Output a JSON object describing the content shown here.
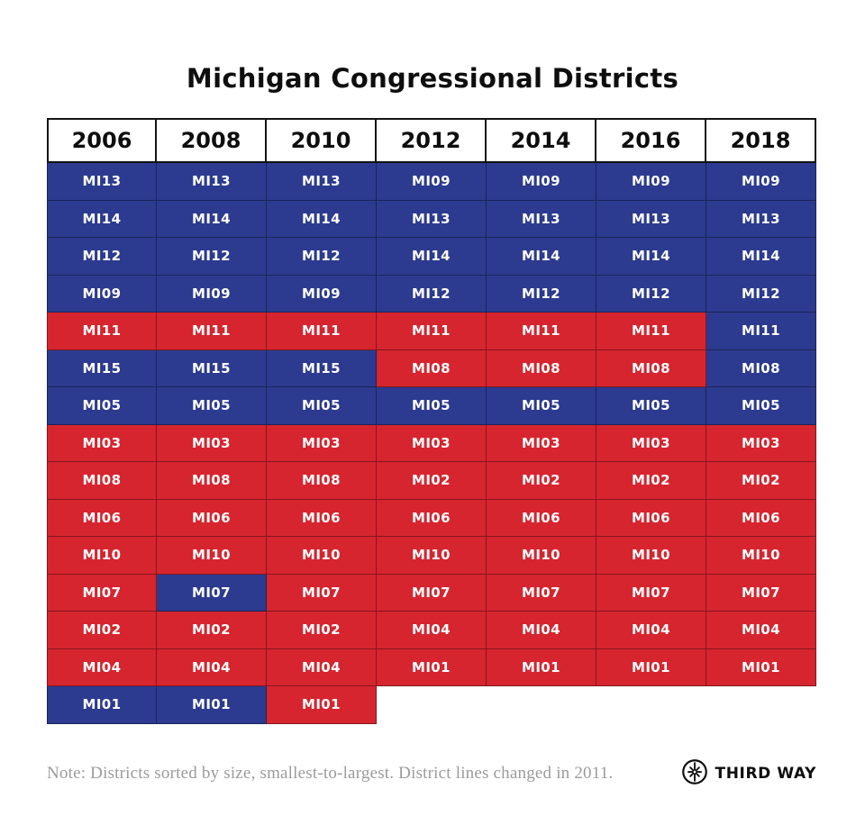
{
  "title": "Michigan Congressional Districts",
  "note": "Note: Districts sorted by size, smallest-to-largest. District lines changed in 2011.",
  "brand": {
    "name": "THIRD WAY",
    "icon": "compass-star-icon"
  },
  "colors": {
    "blue": "#2c3b8f",
    "red": "#d6252f",
    "header_bg": "#ffffff",
    "note_gray": "#9b9b9b",
    "text_dark": "#0e0e0e"
  },
  "chart_data": {
    "type": "table",
    "title": "Michigan Congressional Districts",
    "columns": [
      "2006",
      "2008",
      "2010",
      "2012",
      "2014",
      "2016",
      "2018"
    ],
    "color_encoding": {
      "blue": "#2c3b8f",
      "red": "#d6252f"
    },
    "rows": [
      [
        "MI13:blue",
        "MI13:blue",
        "MI13:blue",
        "MI09:blue",
        "MI09:blue",
        "MI09:blue",
        "MI09:blue"
      ],
      [
        "MI14:blue",
        "MI14:blue",
        "MI14:blue",
        "MI13:blue",
        "MI13:blue",
        "MI13:blue",
        "MI13:blue"
      ],
      [
        "MI12:blue",
        "MI12:blue",
        "MI12:blue",
        "MI14:blue",
        "MI14:blue",
        "MI14:blue",
        "MI14:blue"
      ],
      [
        "MI09:blue",
        "MI09:blue",
        "MI09:blue",
        "MI12:blue",
        "MI12:blue",
        "MI12:blue",
        "MI12:blue"
      ],
      [
        "MI11:red",
        "MI11:red",
        "MI11:red",
        "MI11:red",
        "MI11:red",
        "MI11:red",
        "MI11:blue"
      ],
      [
        "MI15:blue",
        "MI15:blue",
        "MI15:blue",
        "MI08:red",
        "MI08:red",
        "MI08:red",
        "MI08:blue"
      ],
      [
        "MI05:blue",
        "MI05:blue",
        "MI05:blue",
        "MI05:blue",
        "MI05:blue",
        "MI05:blue",
        "MI05:blue"
      ],
      [
        "MI03:red",
        "MI03:red",
        "MI03:red",
        "MI03:red",
        "MI03:red",
        "MI03:red",
        "MI03:red"
      ],
      [
        "MI08:red",
        "MI08:red",
        "MI08:red",
        "MI02:red",
        "MI02:red",
        "MI02:red",
        "MI02:red"
      ],
      [
        "MI06:red",
        "MI06:red",
        "MI06:red",
        "MI06:red",
        "MI06:red",
        "MI06:red",
        "MI06:red"
      ],
      [
        "MI10:red",
        "MI10:red",
        "MI10:red",
        "MI10:red",
        "MI10:red",
        "MI10:red",
        "MI10:red"
      ],
      [
        "MI07:red",
        "MI07:blue",
        "MI07:red",
        "MI07:red",
        "MI07:red",
        "MI07:red",
        "MI07:red"
      ],
      [
        "MI02:red",
        "MI02:red",
        "MI02:red",
        "MI04:red",
        "MI04:red",
        "MI04:red",
        "MI04:red"
      ],
      [
        "MI04:red",
        "MI04:red",
        "MI04:red",
        "MI01:red",
        "MI01:red",
        "MI01:red",
        "MI01:red"
      ],
      [
        "MI01:blue",
        "MI01:blue",
        "MI01:red",
        null,
        null,
        null,
        null
      ]
    ]
  }
}
